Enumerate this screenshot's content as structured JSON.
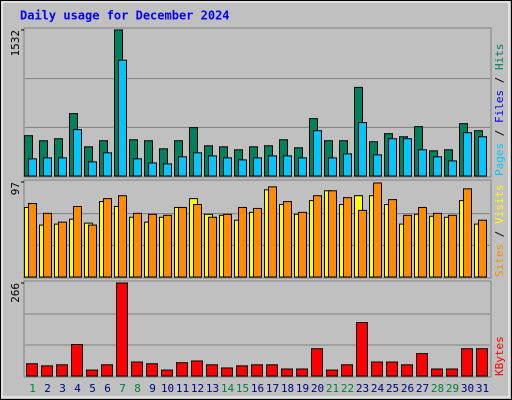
{
  "chart_data": [
    {
      "type": "bar",
      "title": "Daily usage for December 2024",
      "series": [
        {
          "name": "Hits",
          "color": "#00805c",
          "values": [
            423,
            370,
            391,
            655,
            306,
            370,
            1532,
            380,
            370,
            285,
            370,
            507,
            317,
            306,
            275,
            306,
            317,
            380,
            296,
            602,
            370,
            370,
            930,
            359,
            444,
            412,
            518,
            264,
            275,
            549,
            475
          ]
        },
        {
          "name": "Files",
          "color": "#0000ff",
          "values": [
            null,
            null,
            null,
            null,
            null,
            null,
            null,
            null,
            null,
            null,
            null,
            null,
            null,
            null,
            null,
            null,
            null,
            null,
            null,
            null,
            null,
            null,
            null,
            null,
            null,
            null,
            null,
            null,
            null,
            null,
            null
          ]
        },
        {
          "name": "Pages",
          "color": "#00c8ff",
          "values": [
            180,
            190,
            190,
            486,
            148,
            243,
            1215,
            180,
            137,
            127,
            201,
            243,
            211,
            190,
            169,
            190,
            211,
            211,
            190,
            475,
            190,
            232,
            560,
            222,
            391,
            391,
            275,
            201,
            158,
            454,
            412
          ]
        }
      ],
      "legend_separator": " / ",
      "ylim": [
        0,
        1532
      ],
      "yticks": [
        1532
      ]
    },
    {
      "type": "bar",
      "series": [
        {
          "name": "Visits",
          "color": "#ffff00",
          "values": [
            71,
            53,
            54,
            59,
            55,
            77,
            72,
            61,
            56,
            61,
            71,
            80,
            64,
            63,
            58,
            66,
            89,
            74,
            64,
            78,
            88,
            74,
            83,
            83,
            74,
            54,
            64,
            62,
            61,
            78,
            54
          ]
        },
        {
          "name": "Sites",
          "color": "#ff8c00",
          "values": [
            75,
            65,
            56,
            72,
            53,
            80,
            83,
            65,
            64,
            63,
            71,
            74,
            61,
            64,
            71,
            70,
            92,
            77,
            66,
            83,
            88,
            81,
            68,
            96,
            79,
            63,
            71,
            65,
            63,
            90,
            58
          ]
        }
      ],
      "legend_separator": " / ",
      "ylim": [
        0,
        97
      ],
      "yticks": [
        97
      ]
    },
    {
      "type": "bar",
      "categories": [
        "1",
        "2",
        "3",
        "4",
        "5",
        "6",
        "7",
        "8",
        "9",
        "10",
        "11",
        "12",
        "13",
        "14",
        "15",
        "16",
        "17",
        "18",
        "19",
        "20",
        "21",
        "22",
        "23",
        "24",
        "25",
        "26",
        "27",
        "28",
        "29",
        "30",
        "31"
      ],
      "category_colors": [
        "#008040",
        "#000080",
        "#000080",
        "#000080",
        "#000080",
        "#000080",
        "#008040",
        "#008040",
        "#000080",
        "#000080",
        "#000080",
        "#000080",
        "#000080",
        "#008040",
        "#008040",
        "#000080",
        "#000080",
        "#000080",
        "#000080",
        "#000080",
        "#008040",
        "#008040",
        "#000080",
        "#000080",
        "#000080",
        "#000080",
        "#000080",
        "#008040",
        "#008040",
        "#000080",
        "#000080"
      ],
      "series": [
        {
          "name": "KBytes",
          "color": "#ff0000",
          "values": [
            35,
            29,
            32,
            90,
            17,
            32,
            266,
            40,
            35,
            17,
            38,
            43,
            32,
            23,
            29,
            32,
            32,
            20,
            20,
            78,
            17,
            32,
            153,
            40,
            40,
            32,
            64,
            20,
            20,
            78,
            78
          ]
        }
      ],
      "ylim": [
        0,
        266
      ],
      "yticks": [
        266
      ]
    }
  ]
}
